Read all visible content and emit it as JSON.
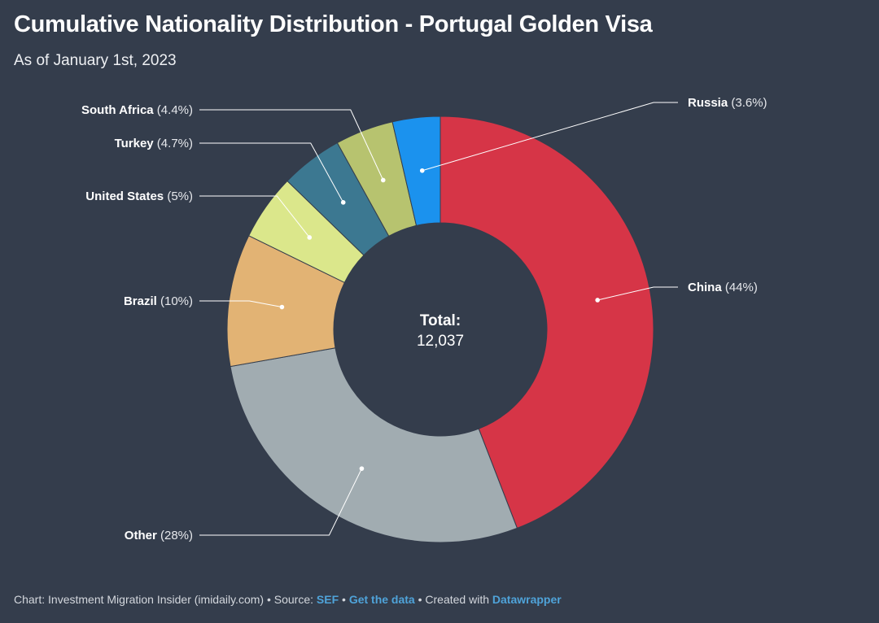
{
  "title": "Cumulative Nationality Distribution - Portugal Golden Visa",
  "subtitle": "As of January 1st, 2023",
  "chart_data": {
    "type": "pie",
    "variant": "donut",
    "categories": [
      "China",
      "Other",
      "Brazil",
      "United States",
      "Turkey",
      "South Africa",
      "Russia"
    ],
    "values": [
      44,
      28,
      10,
      5,
      4.7,
      4.4,
      3.6
    ],
    "labels": [
      "(44%)",
      "(28%)",
      "(10%)",
      "(5%)",
      "(4.7%)",
      "(4.4%)",
      "(3.6%)"
    ],
    "colors": [
      "#d63547",
      "#a1acb1",
      "#e2b374",
      "#dbe78b",
      "#3c7891",
      "#b7c36f",
      "#1b92ee"
    ],
    "center_label": "Total:",
    "center_value": "12,037"
  },
  "footer": {
    "credit": "Chart: Investment Migration Insider (imidaily.com)",
    "sep1": " • Source: ",
    "source_link": "SEF",
    "sep2": " • ",
    "data_link": "Get the data",
    "sep3": " • Created with ",
    "tool_link": "Datawrapper"
  }
}
